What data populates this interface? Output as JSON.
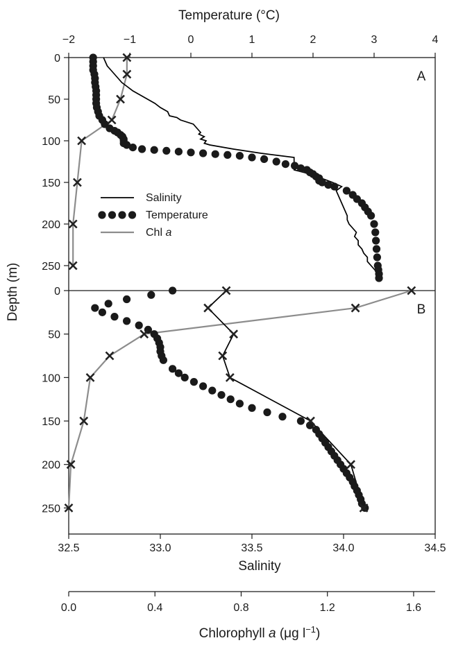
{
  "chart_data": {
    "type": "line",
    "axes": {
      "temperature": {
        "label": "Temperature (°C)",
        "range": [
          -2,
          4
        ],
        "ticks": [
          -2,
          -1,
          0,
          1,
          2,
          3,
          4
        ]
      },
      "salinity": {
        "label": "Salinity",
        "range": [
          32.5,
          34.5
        ],
        "ticks": [
          "32.5",
          "33.0",
          "33.5",
          "34.0",
          "34.5"
        ]
      },
      "chlorophyll": {
        "label_main": "Chlorophyll ",
        "label_italic": "a",
        "label_unit": " (μg l",
        "label_sup": "−1",
        "label_close": ")",
        "range": [
          0,
          1.7
        ],
        "ticks": [
          "0.0",
          "0.4",
          "0.8",
          "1.2",
          "1.6"
        ]
      },
      "depth": {
        "label": "Depth (m)",
        "range": [
          0,
          280
        ],
        "ticks": [
          0,
          50,
          100,
          150,
          200,
          250
        ]
      }
    },
    "legend": {
      "placement": "center-left of panel A",
      "entries": [
        {
          "name": "Salinity",
          "style": "solid-black"
        },
        {
          "name": "Temperature",
          "style": "black-dots"
        },
        {
          "name": "Chl ",
          "name_italic": "a",
          "style": "gray-line-x"
        }
      ]
    },
    "colors": {
      "salinity": "#000000",
      "temperature": "#1a1a1a",
      "chl": "#8c8c8c",
      "marker": "#222222"
    },
    "panels": [
      {
        "label": "A",
        "salinity": {
          "depth": [
            0,
            5,
            10,
            15,
            20,
            25,
            30,
            35,
            40,
            45,
            50,
            55,
            60,
            65,
            70,
            72,
            75,
            80,
            85,
            90,
            92,
            95,
            98,
            100,
            103,
            105,
            110,
            115,
            120,
            125,
            130,
            135,
            140,
            145,
            150,
            155,
            160,
            170,
            180,
            190,
            195,
            200,
            205,
            210,
            215,
            220,
            225,
            230,
            235,
            240,
            245,
            250,
            255,
            260,
            265
          ],
          "value": [
            32.69,
            32.7,
            32.71,
            32.73,
            32.75,
            32.77,
            32.79,
            32.82,
            32.85,
            32.89,
            32.93,
            32.97,
            33.0,
            33.04,
            33.05,
            33.09,
            33.11,
            33.18,
            33.2,
            33.22,
            33.21,
            33.24,
            33.22,
            33.25,
            33.24,
            33.27,
            33.4,
            33.55,
            33.73,
            33.73,
            33.73,
            33.73,
            33.82,
            33.88,
            33.94,
            33.99,
            33.96,
            33.98,
            34.0,
            34.02,
            34.02,
            34.03,
            34.05,
            34.07,
            34.06,
            34.08,
            34.08,
            34.1,
            34.11,
            34.13,
            34.13,
            34.15,
            34.17,
            34.19,
            34.2
          ]
        },
        "temperature": {
          "depth": [
            0,
            5,
            10,
            15,
            20,
            25,
            30,
            35,
            40,
            45,
            50,
            55,
            60,
            65,
            70,
            75,
            80,
            85,
            88,
            90,
            93,
            95,
            98,
            100,
            103,
            105,
            108,
            110,
            111,
            112,
            113,
            114,
            115,
            116,
            117,
            118,
            120,
            122,
            125,
            128,
            130,
            133,
            135,
            138,
            140,
            143,
            145,
            148,
            150,
            153,
            155,
            160,
            165,
            170,
            175,
            180,
            185,
            190,
            200,
            210,
            220,
            230,
            240,
            250,
            255,
            260,
            265
          ],
          "value": [
            -1.6,
            -1.6,
            -1.6,
            -1.6,
            -1.58,
            -1.57,
            -1.57,
            -1.56,
            -1.55,
            -1.55,
            -1.55,
            -1.55,
            -1.54,
            -1.52,
            -1.5,
            -1.45,
            -1.41,
            -1.33,
            -1.25,
            -1.2,
            -1.15,
            -1.12,
            -1.1,
            -1.1,
            -1.1,
            -1.05,
            -0.95,
            -0.8,
            -0.6,
            -0.4,
            -0.2,
            0.0,
            0.2,
            0.4,
            0.6,
            0.8,
            1.0,
            1.2,
            1.4,
            1.55,
            1.7,
            1.8,
            1.9,
            1.95,
            2.0,
            2.05,
            2.1,
            2.1,
            2.15,
            2.25,
            2.35,
            2.55,
            2.65,
            2.72,
            2.8,
            2.85,
            2.9,
            2.95,
            3.0,
            3.02,
            3.03,
            3.04,
            3.05,
            3.06,
            3.07,
            3.08,
            3.08
          ]
        },
        "chl": {
          "depth": [
            0,
            20,
            50,
            75,
            100,
            150,
            200,
            250
          ],
          "value": [
            0.27,
            0.27,
            0.24,
            0.2,
            0.06,
            0.04,
            0.02,
            0.02
          ]
        }
      },
      {
        "label": "B",
        "salinity": {
          "depth": [
            0,
            20,
            50,
            75,
            100,
            150,
            200,
            250
          ],
          "value": [
            33.36,
            33.26,
            33.4,
            33.34,
            33.38,
            33.82,
            34.04,
            34.11
          ]
        },
        "temperature": {
          "depth": [
            0,
            5,
            10,
            15,
            20,
            25,
            30,
            35,
            40,
            45,
            50,
            55,
            60,
            65,
            70,
            75,
            80,
            90,
            95,
            100,
            105,
            110,
            115,
            120,
            125,
            130,
            135,
            140,
            145,
            150,
            155,
            160,
            165,
            170,
            175,
            180,
            185,
            190,
            195,
            200,
            205,
            210,
            215,
            220,
            225,
            230,
            235,
            240,
            245,
            250
          ],
          "value": [
            -0.3,
            -0.65,
            -1.05,
            -1.35,
            -1.57,
            -1.45,
            -1.25,
            -1.05,
            -0.85,
            -0.7,
            -0.6,
            -0.55,
            -0.52,
            -0.5,
            -0.5,
            -0.48,
            -0.45,
            -0.3,
            -0.2,
            -0.1,
            0.05,
            0.2,
            0.35,
            0.5,
            0.65,
            0.8,
            1.0,
            1.25,
            1.5,
            1.8,
            1.95,
            2.05,
            2.1,
            2.15,
            2.2,
            2.25,
            2.3,
            2.35,
            2.4,
            2.45,
            2.5,
            2.55,
            2.6,
            2.65,
            2.68,
            2.72,
            2.75,
            2.78,
            2.8,
            2.85
          ]
        },
        "chl": {
          "depth": [
            0,
            20,
            50,
            75,
            100,
            150,
            200,
            250
          ],
          "value": [
            1.59,
            1.33,
            0.35,
            0.19,
            0.1,
            0.07,
            0.01,
            0.0
          ]
        }
      }
    ]
  }
}
